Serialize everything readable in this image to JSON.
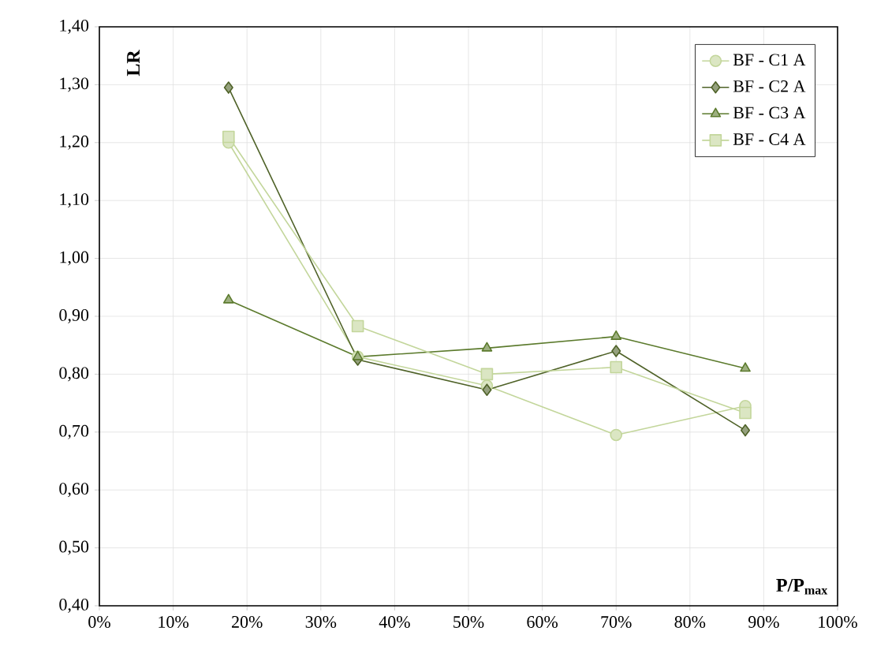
{
  "chart_data": {
    "type": "line",
    "xlabel": "**P/P$_{max}$**",
    "ylabel": "**LR**",
    "x": [
      17.5,
      35,
      52.5,
      70,
      87.5
    ],
    "series": [
      {
        "name": "BF - C1 A",
        "color": "#c3d69b",
        "marker": "circle",
        "values": [
          1.2,
          0.83,
          0.78,
          0.695,
          0.745
        ]
      },
      {
        "name": "BF - C2 A",
        "color": "#4f6228",
        "marker": "diamond",
        "values": [
          1.295,
          0.825,
          0.773,
          0.84,
          0.703
        ]
      },
      {
        "name": "BF - C3 A",
        "color": "#5b7a2c",
        "marker": "triangle",
        "values": [
          0.928,
          0.83,
          0.845,
          0.865,
          0.81
        ]
      },
      {
        "name": "BF - C4 A",
        "color": "#c3d69b",
        "marker": "square",
        "values": [
          1.21,
          0.883,
          0.8,
          0.812,
          0.733
        ]
      }
    ],
    "xlim": [
      0,
      100
    ],
    "xticks": [
      {
        "value": 0,
        "label": "0%"
      },
      {
        "value": 10,
        "label": "10%"
      },
      {
        "value": 20,
        "label": "20%"
      },
      {
        "value": 30,
        "label": "30%"
      },
      {
        "value": 40,
        "label": "40%"
      },
      {
        "value": 50,
        "label": "50%"
      },
      {
        "value": 60,
        "label": "60%"
      },
      {
        "value": 70,
        "label": "70%"
      },
      {
        "value": 80,
        "label": "80%"
      },
      {
        "value": 90,
        "label": "90%"
      },
      {
        "value": 100,
        "label": "100%"
      }
    ],
    "ylim": [
      0.4,
      1.4
    ],
    "yticks": [
      {
        "value": 0.4,
        "label": "0,40"
      },
      {
        "value": 0.5,
        "label": "0,50"
      },
      {
        "value": 0.6,
        "label": "0,60"
      },
      {
        "value": 0.7,
        "label": "0,70"
      },
      {
        "value": 0.8,
        "label": "0,80"
      },
      {
        "value": 0.9,
        "label": "0,90"
      },
      {
        "value": 1.0,
        "label": "1,00"
      },
      {
        "value": 1.1,
        "label": "1,10"
      },
      {
        "value": 1.2,
        "label": "1,20"
      },
      {
        "value": 1.3,
        "label": "1,30"
      },
      {
        "value": 1.4,
        "label": "1,40"
      }
    ],
    "grid": true,
    "legend": "top right"
  }
}
